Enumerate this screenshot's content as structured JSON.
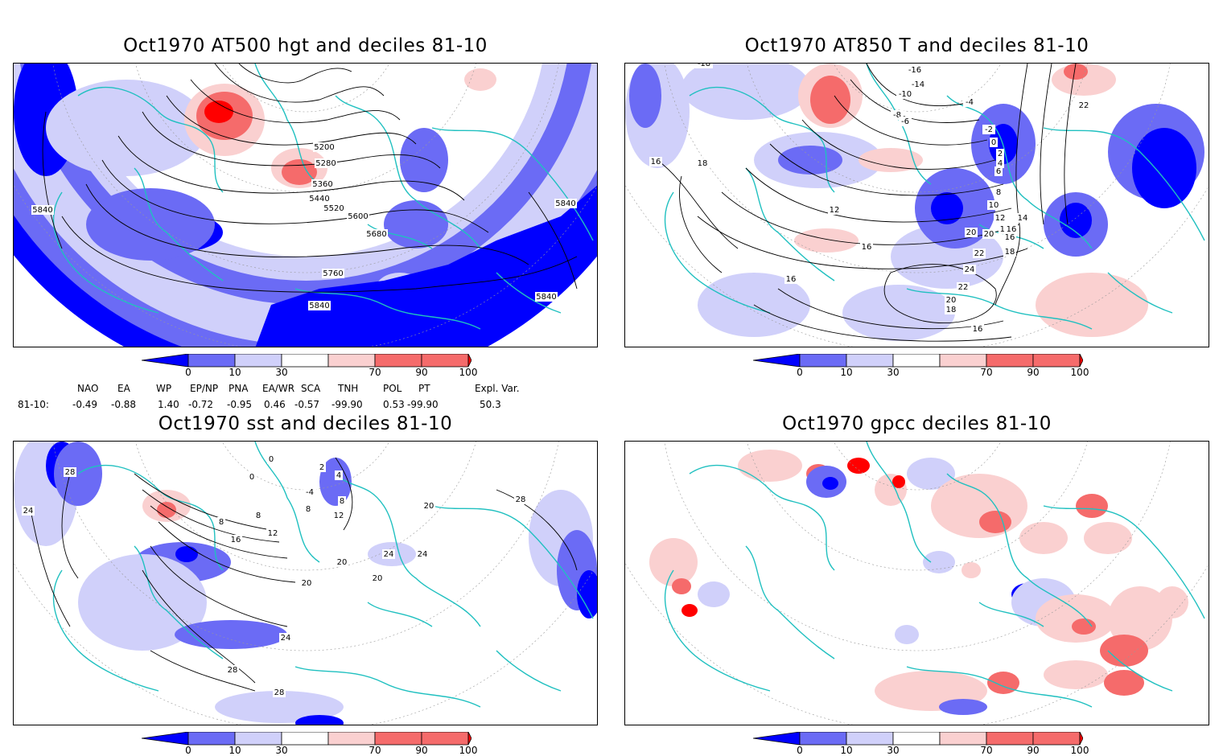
{
  "panels": [
    {
      "id": "hgt",
      "title": "Oct1970 AT500 hgt and deciles 81-10",
      "contours": [
        "5200",
        "5280",
        "5360",
        "5440",
        "5520",
        "5600",
        "5680",
        "5760",
        "5840",
        "5840",
        "5840",
        "5840"
      ]
    },
    {
      "id": "t850",
      "title": "Oct1970 AT850 T and deciles 81-10",
      "contours": [
        "-18",
        "-16",
        "-14",
        "-10",
        "-8",
        "-6",
        "-4",
        "-2",
        "0",
        "2",
        "4",
        "6",
        "8",
        "10",
        "12",
        "14",
        "16",
        "18",
        "20",
        "22",
        "24",
        "22",
        "20",
        "18",
        "16",
        "16",
        "16",
        "16",
        "18",
        "12",
        "14",
        "16",
        "20",
        "22"
      ]
    },
    {
      "id": "sst",
      "title": "Oct1970 sst and deciles 81-10",
      "contours": [
        "28",
        "24",
        "0",
        "2",
        "4",
        "-4",
        "0",
        "8",
        "8",
        "8",
        "12",
        "16",
        "20",
        "20",
        "24",
        "20",
        "24",
        "24",
        "28",
        "28",
        "28",
        "20",
        "12",
        "8"
      ]
    },
    {
      "id": "gpcc",
      "title": "Oct1970 gpcc deciles 81-10",
      "contours": []
    }
  ],
  "colorbar": {
    "ticks": [
      "0",
      "10",
      "30",
      "70",
      "90",
      "100"
    ],
    "colors": {
      "deep_blue": "#0000ff",
      "mid_blue": "#6b6bf5",
      "light_blue": "#d0d0fa",
      "white": "#ffffff",
      "light_red": "#fad0d0",
      "mid_red": "#f56b6b",
      "deep_red": "#ff0000"
    }
  },
  "indices": {
    "headers": [
      "NAO",
      "EA",
      "WP",
      "EP/NP",
      "PNA",
      "EA/WR",
      "SCA",
      "TNH",
      "POL",
      "PT",
      "Expl. Var."
    ],
    "row_label": "81-10:",
    "values": [
      "-0.49",
      "-0.88",
      "1.40",
      "-0.72",
      "-0.95",
      "0.46",
      "-0.57",
      "-99.90",
      "0.53",
      "-99.90",
      "50.3"
    ]
  },
  "map_colors": {
    "coast": "#20c0c0",
    "contour": "#000000",
    "grid": "#999999"
  }
}
